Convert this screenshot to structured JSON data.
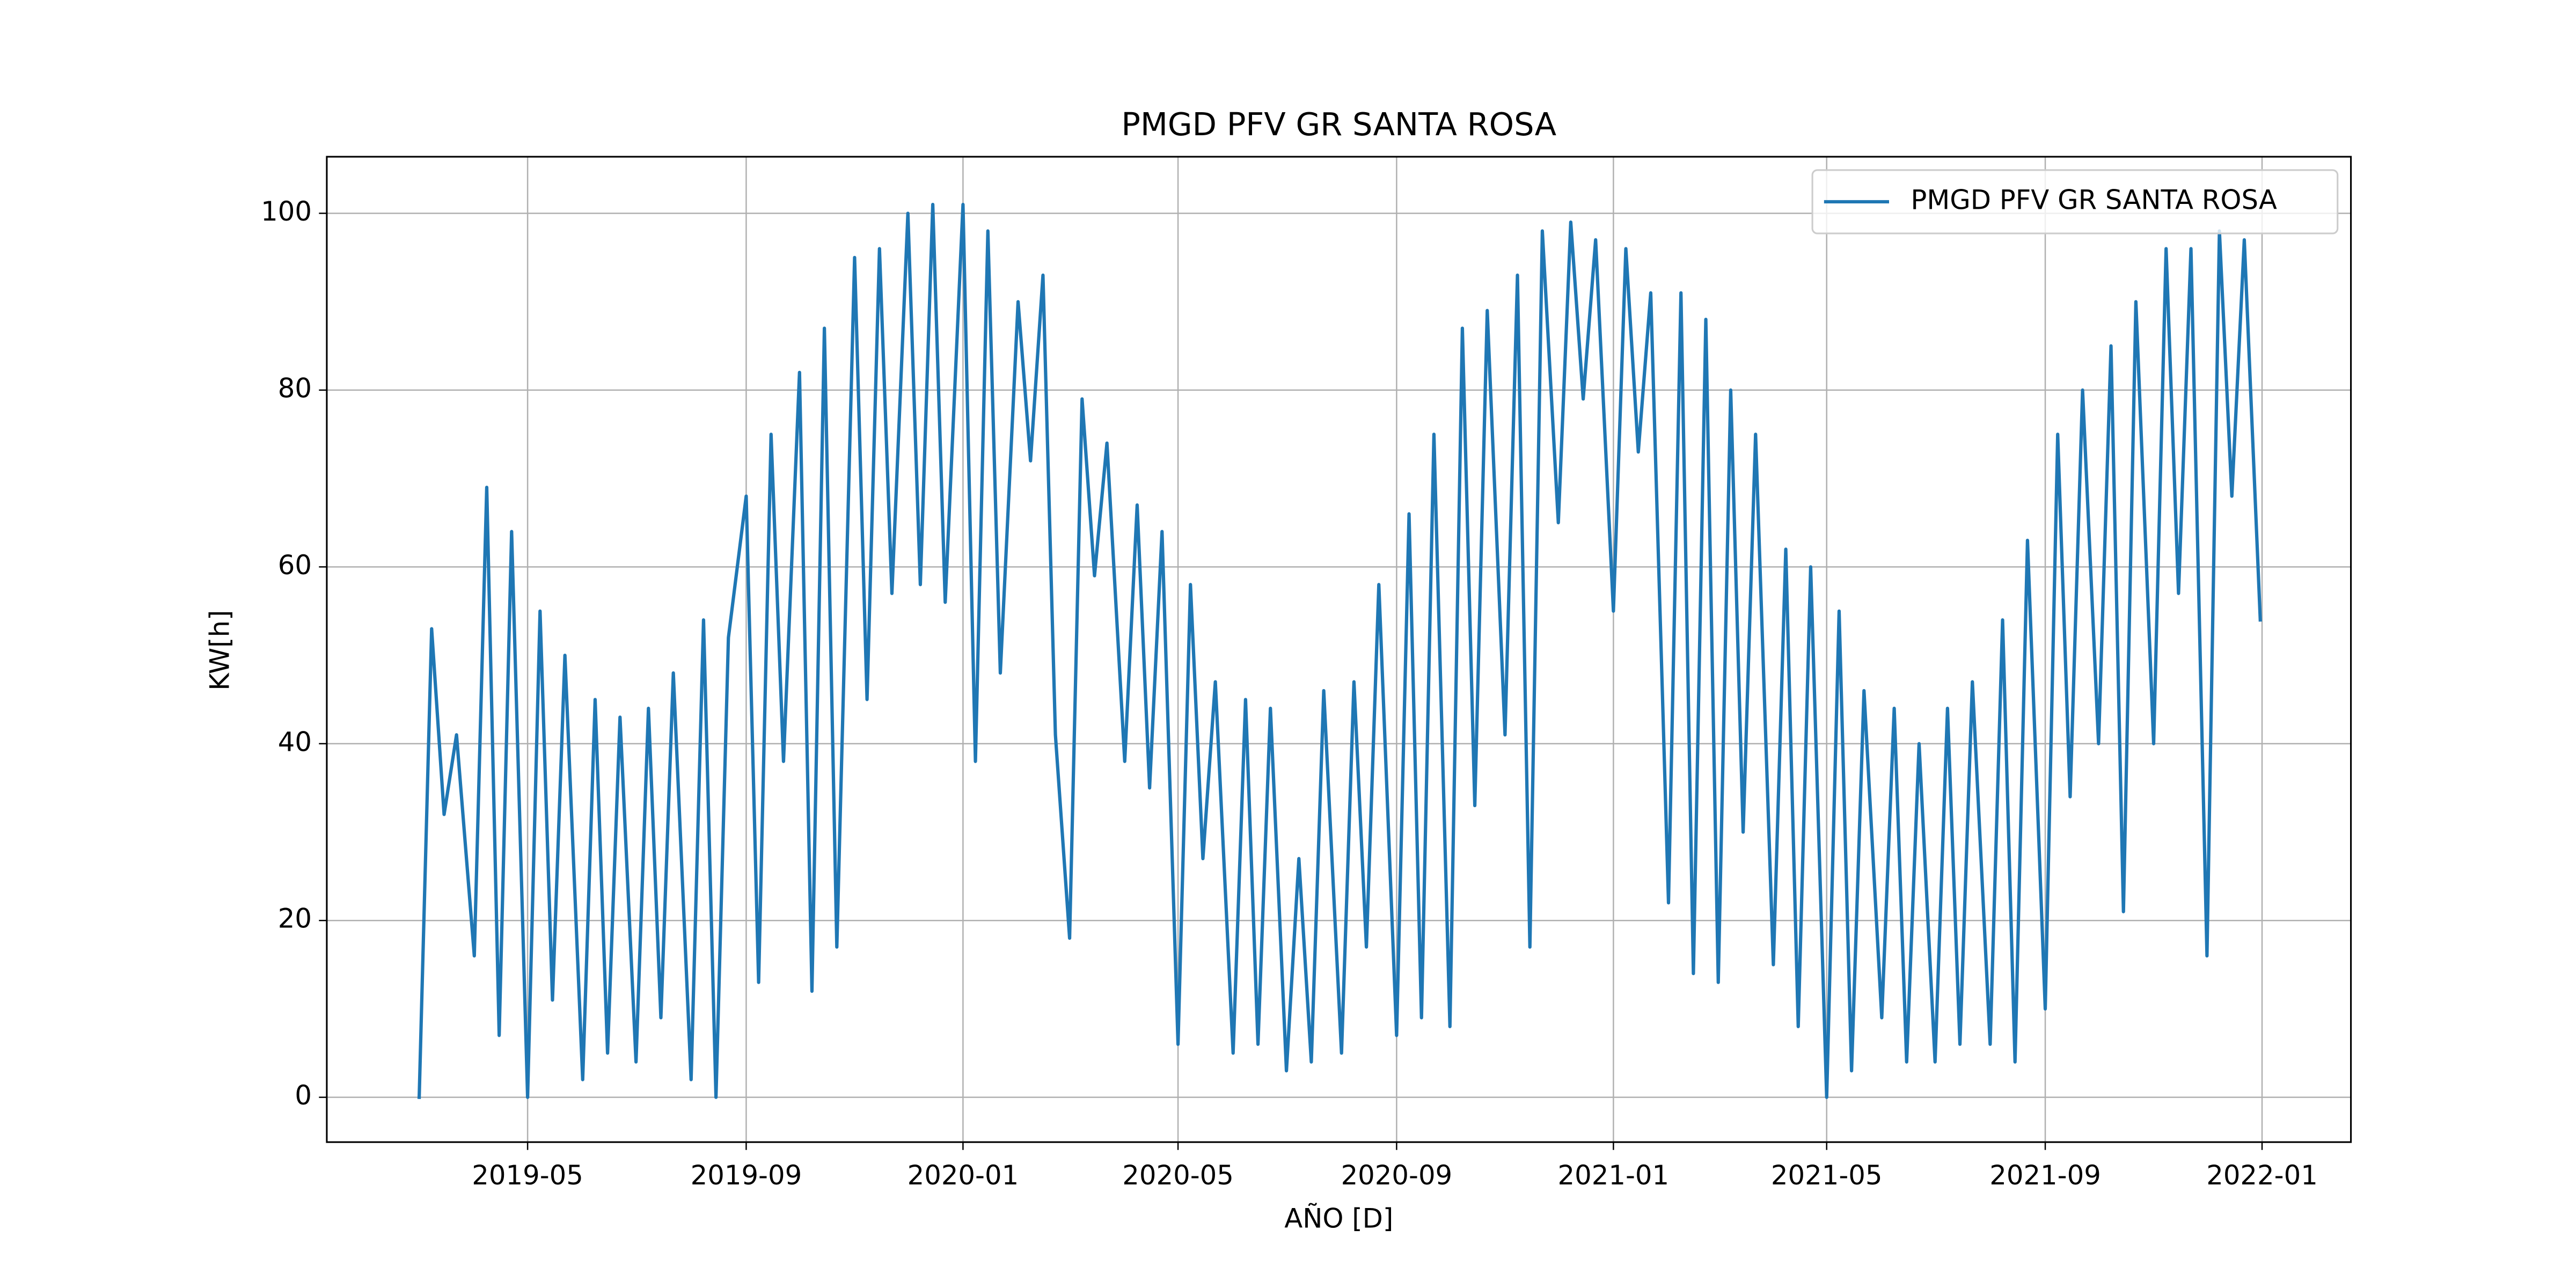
{
  "chart_data": {
    "type": "line",
    "title": "PMGD PFV GR SANTA ROSA",
    "xlabel": "AÑO [D]",
    "ylabel": "KW[h]",
    "x": [
      "2019-03-01",
      "2019-03-08",
      "2019-03-15",
      "2019-03-22",
      "2019-04-01",
      "2019-04-08",
      "2019-04-15",
      "2019-04-22",
      "2019-05-01",
      "2019-05-08",
      "2019-05-15",
      "2019-05-22",
      "2019-06-01",
      "2019-06-08",
      "2019-06-15",
      "2019-06-22",
      "2019-07-01",
      "2019-07-08",
      "2019-07-15",
      "2019-07-22",
      "2019-08-01",
      "2019-08-08",
      "2019-08-15",
      "2019-08-22",
      "2019-09-01",
      "2019-09-08",
      "2019-09-15",
      "2019-09-22",
      "2019-10-01",
      "2019-10-08",
      "2019-10-15",
      "2019-10-22",
      "2019-11-01",
      "2019-11-08",
      "2019-11-15",
      "2019-11-22",
      "2019-12-01",
      "2019-12-08",
      "2019-12-15",
      "2019-12-22",
      "2020-01-01",
      "2020-01-08",
      "2020-01-15",
      "2020-01-22",
      "2020-02-01",
      "2020-02-08",
      "2020-02-15",
      "2020-02-22",
      "2020-03-01",
      "2020-03-08",
      "2020-03-15",
      "2020-03-22",
      "2020-04-01",
      "2020-04-08",
      "2020-04-15",
      "2020-04-22",
      "2020-05-01",
      "2020-05-08",
      "2020-05-15",
      "2020-05-22",
      "2020-06-01",
      "2020-06-08",
      "2020-06-15",
      "2020-06-22",
      "2020-07-01",
      "2020-07-08",
      "2020-07-15",
      "2020-07-22",
      "2020-08-01",
      "2020-08-08",
      "2020-08-15",
      "2020-08-22",
      "2020-09-01",
      "2020-09-08",
      "2020-09-15",
      "2020-09-22",
      "2020-10-01",
      "2020-10-08",
      "2020-10-15",
      "2020-10-22",
      "2020-11-01",
      "2020-11-08",
      "2020-11-15",
      "2020-11-22",
      "2020-12-01",
      "2020-12-08",
      "2020-12-15",
      "2020-12-22",
      "2021-01-01",
      "2021-01-08",
      "2021-01-15",
      "2021-01-22",
      "2021-02-01",
      "2021-02-08",
      "2021-02-15",
      "2021-02-22",
      "2021-03-01",
      "2021-03-08",
      "2021-03-15",
      "2021-03-22",
      "2021-04-01",
      "2021-04-08",
      "2021-04-15",
      "2021-04-22",
      "2021-05-01",
      "2021-05-08",
      "2021-05-15",
      "2021-05-22",
      "2021-06-01",
      "2021-06-08",
      "2021-06-15",
      "2021-06-22",
      "2021-07-01",
      "2021-07-08",
      "2021-07-15",
      "2021-07-22",
      "2021-08-01",
      "2021-08-08",
      "2021-08-15",
      "2021-08-22",
      "2021-09-01",
      "2021-09-08",
      "2021-09-15",
      "2021-09-22",
      "2021-10-01",
      "2021-10-08",
      "2021-10-15",
      "2021-10-22",
      "2021-11-01",
      "2021-11-08",
      "2021-11-15",
      "2021-11-22",
      "2021-12-01",
      "2021-12-08",
      "2021-12-15",
      "2021-12-22",
      "2021-12-31"
    ],
    "series": [
      {
        "name": "PMGD PFV GR SANTA ROSA",
        "color": "#1f77b4",
        "values": [
          0,
          53,
          32,
          41,
          16,
          69,
          7,
          64,
          0,
          55,
          11,
          50,
          2,
          45,
          5,
          43,
          4,
          44,
          9,
          48,
          2,
          54,
          0,
          52,
          68,
          13,
          75,
          38,
          82,
          12,
          87,
          17,
          95,
          45,
          96,
          57,
          100,
          58,
          101,
          56,
          101,
          38,
          98,
          48,
          90,
          72,
          93,
          41,
          18,
          79,
          59,
          74,
          38,
          67,
          35,
          64,
          6,
          58,
          27,
          47,
          5,
          45,
          6,
          44,
          3,
          27,
          4,
          46,
          5,
          47,
          17,
          58,
          7,
          66,
          9,
          75,
          8,
          87,
          33,
          89,
          41,
          93,
          17,
          98,
          65,
          99,
          79,
          97,
          55,
          96,
          73,
          91,
          22,
          91,
          14,
          88,
          13,
          80,
          30,
          75,
          15,
          62,
          8,
          60,
          0,
          55,
          3,
          46,
          9,
          44,
          4,
          40,
          4,
          44,
          6,
          47,
          6,
          54,
          4,
          63,
          10,
          75,
          34,
          80,
          40,
          85,
          21,
          90,
          40,
          96,
          57,
          96,
          16,
          98,
          68,
          97,
          54
        ]
      }
    ],
    "xlim": [
      "2019-01-08",
      "2022-02-20"
    ],
    "xticks": [
      "2019-05",
      "2019-09",
      "2020-01",
      "2020-05",
      "2020-09",
      "2021-01",
      "2021-05",
      "2021-09",
      "2022-01"
    ],
    "ylim": [
      -5.07,
      106.4
    ],
    "yticks": [
      0,
      20,
      40,
      60,
      80,
      100
    ],
    "grid": true,
    "legend": "upper right"
  }
}
